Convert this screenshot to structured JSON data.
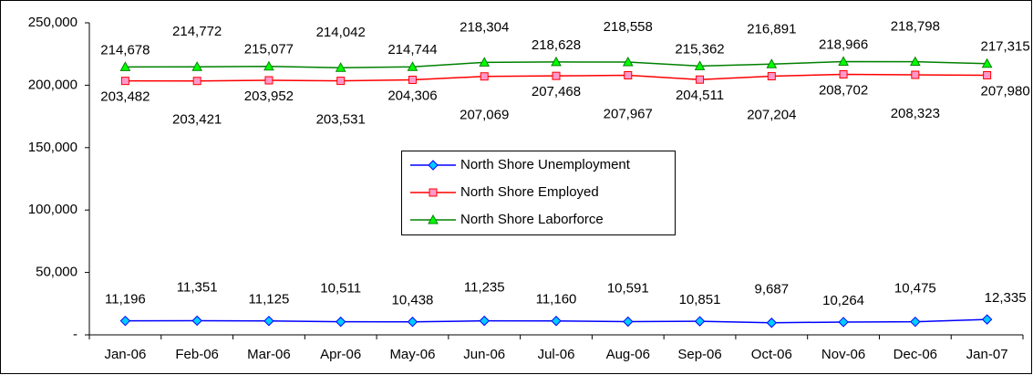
{
  "chart_data": {
    "type": "line",
    "categories": [
      "Jan-06",
      "Feb-06",
      "Mar-06",
      "Apr-06",
      "May-06",
      "Jun-06",
      "Jul-06",
      "Aug-06",
      "Sep-06",
      "Oct-06",
      "Nov-06",
      "Dec-06",
      "Jan-07"
    ],
    "series": [
      {
        "name": "North Shore Unemployment",
        "color": "#0000ff",
        "marker": "diamond",
        "marker_fill": "#00ccff",
        "values": [
          11196,
          11351,
          11125,
          10511,
          10438,
          11235,
          11160,
          10591,
          10851,
          9687,
          10264,
          10475,
          12335
        ],
        "value_labels": [
          "11,196",
          "11,351",
          "11,125",
          "10,511",
          "10,438",
          "11,235",
          "11,160",
          "10,591",
          "10,851",
          "9,687",
          "10,264",
          "10,475",
          "12,335"
        ]
      },
      {
        "name": "North Shore Employed",
        "color": "#ff0000",
        "marker": "square",
        "marker_fill": "#ff99cc",
        "values": [
          203482,
          203421,
          203952,
          203531,
          204306,
          207069,
          207468,
          207967,
          204511,
          207204,
          208702,
          208323,
          207980
        ],
        "value_labels": [
          "203,482",
          "203,421",
          "203,952",
          "203,531",
          "204,306",
          "207,069",
          "207,468",
          "207,967",
          "204,511",
          "207,204",
          "208,702",
          "208,323",
          "207,980"
        ]
      },
      {
        "name": "North Shore Laborforce",
        "color": "#008000",
        "marker": "triangle",
        "marker_fill": "#00ff00",
        "values": [
          214678,
          214772,
          215077,
          214042,
          214744,
          218304,
          218628,
          218558,
          215362,
          216891,
          218966,
          218798,
          217315
        ],
        "value_labels": [
          "214,678",
          "214,772",
          "215,077",
          "214,042",
          "214,744",
          "218,304",
          "218,628",
          "218,558",
          "215,362",
          "216,891",
          "218,966",
          "218,798",
          "217,315"
        ]
      }
    ],
    "ylim": [
      0,
      250000
    ],
    "yticks": [
      {
        "value": 0,
        "label": "-"
      },
      {
        "value": 50000,
        "label": "50,000"
      },
      {
        "value": 100000,
        "label": "100,000"
      },
      {
        "value": 150000,
        "label": "150,000"
      },
      {
        "value": 200000,
        "label": "200,000"
      },
      {
        "value": 250000,
        "label": "250,000"
      }
    ]
  }
}
